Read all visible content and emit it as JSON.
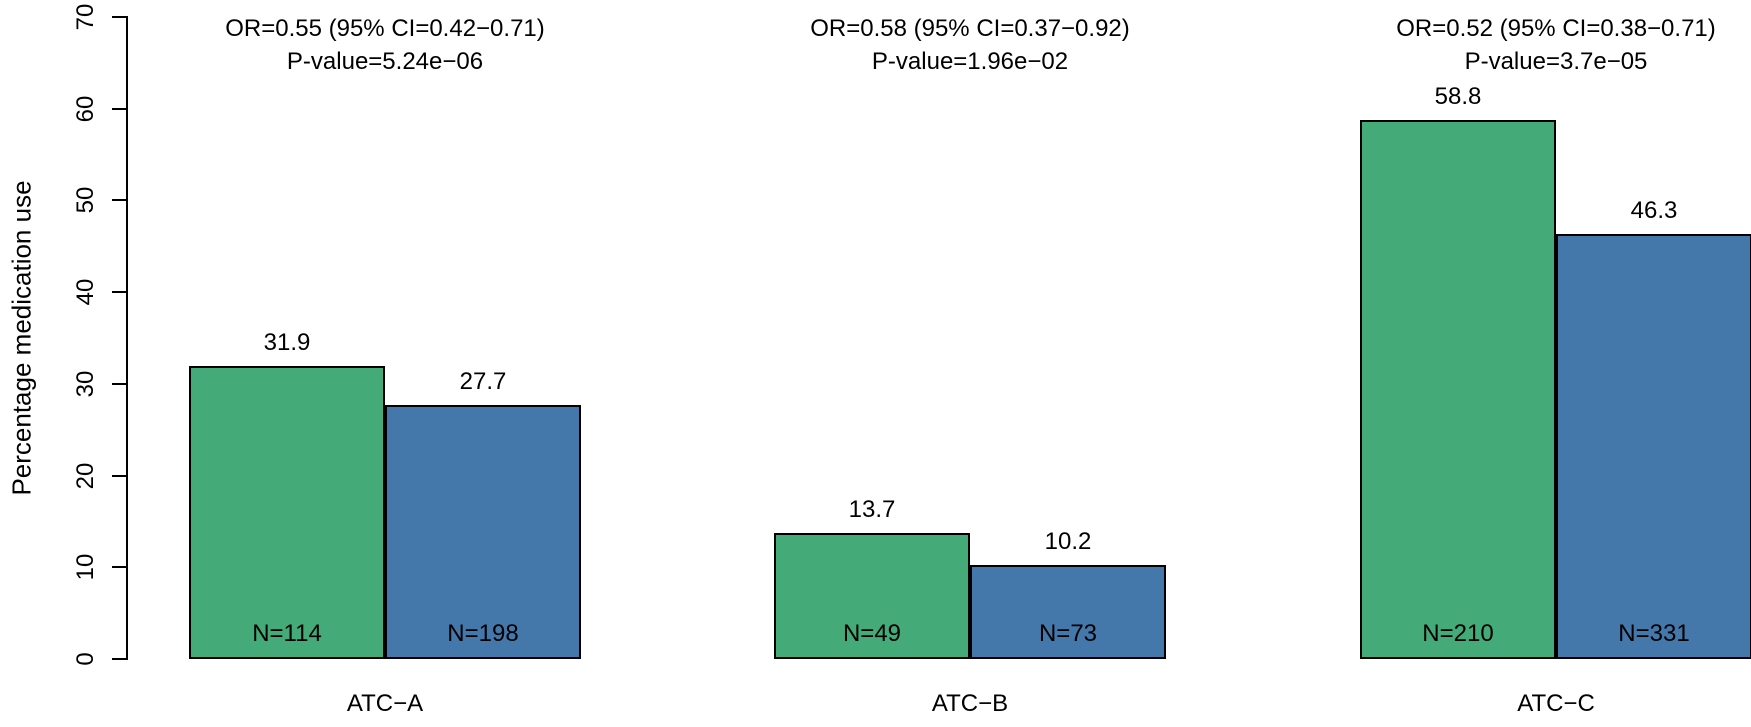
{
  "figure": {
    "background": "#ffffff",
    "text_color": "#000000",
    "axis_color": "#000000"
  },
  "chart_data": {
    "type": "bar",
    "title": "",
    "xlabel": "",
    "ylabel": "Percentage medication use",
    "ylim": [
      0,
      70
    ],
    "yticks": [
      0,
      10,
      20,
      30,
      40,
      50,
      60,
      70
    ],
    "grid": false,
    "legend": null,
    "categories": [
      "ATC−A",
      "ATC−B",
      "ATC−C"
    ],
    "series": [
      {
        "name": "green",
        "color": "#44AA77",
        "values": [
          31.9,
          13.7,
          58.8
        ],
        "value_labels": [
          "31.9",
          "13.7",
          "58.8"
        ],
        "n_labels": [
          "N=114",
          "N=49",
          "N=210"
        ]
      },
      {
        "name": "blue",
        "color": "#4477AA",
        "values": [
          27.7,
          10.2,
          46.3
        ],
        "value_labels": [
          "27.7",
          "10.2",
          "46.3"
        ],
        "n_labels": [
          "N=198",
          "N=73",
          "N=331"
        ]
      }
    ],
    "annotations": [
      {
        "line1": "OR=0.55 (95% CI=0.42−0.71)",
        "line2": "P-value=5.24e−06"
      },
      {
        "line1": "OR=0.58 (95% CI=0.37−0.92)",
        "line2": "P-value=1.96e−02"
      },
      {
        "line1": "OR=0.52 (95% CI=0.38−0.71)",
        "line2": "P-value=3.7e−05"
      }
    ]
  }
}
